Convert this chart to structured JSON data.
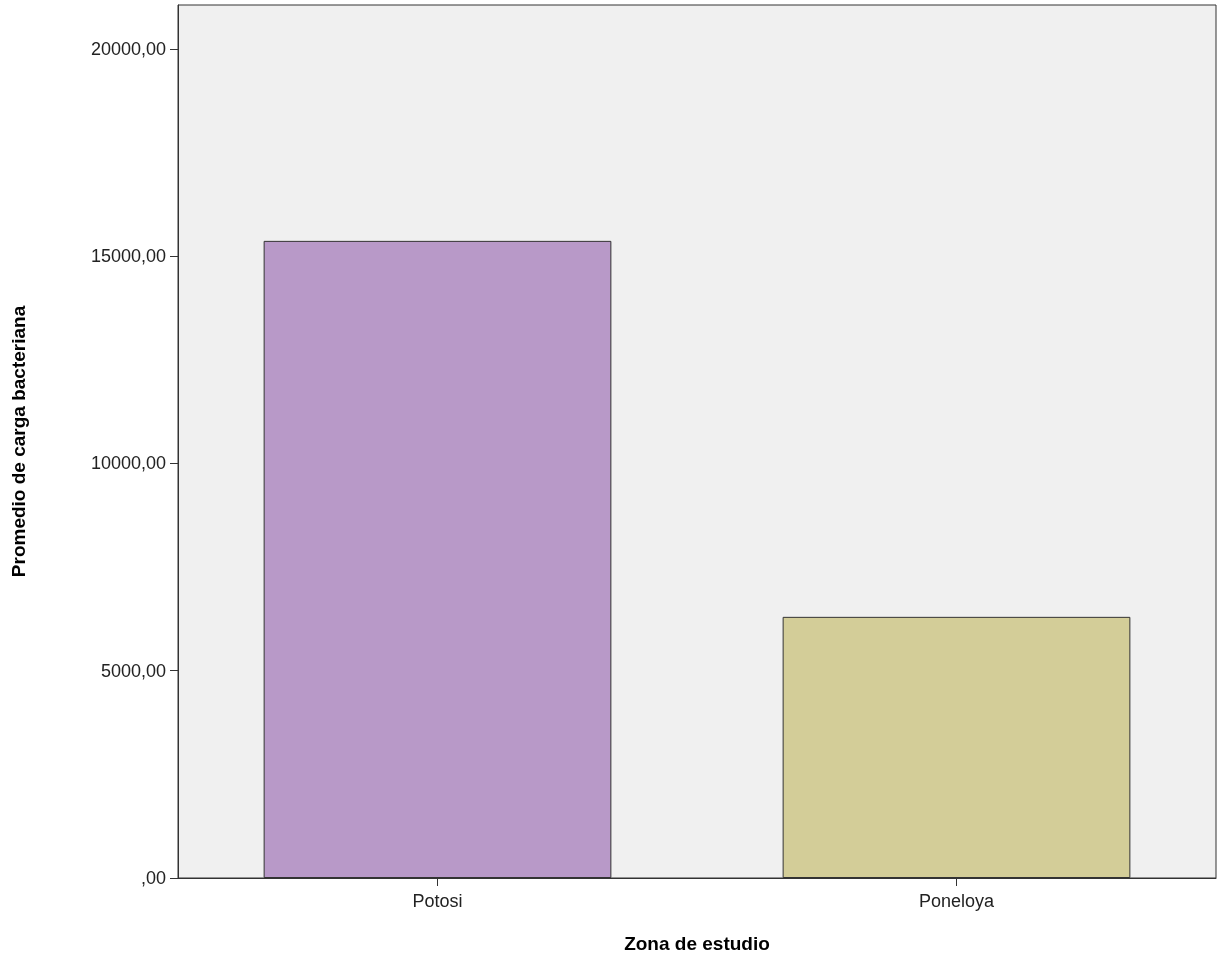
{
  "chart_data": {
    "type": "bar",
    "xlabel": "Zona de estudio",
    "ylabel": "Promedio de carga bacteriana",
    "categories": [
      "Potosi",
      "Poneloya"
    ],
    "values": [
      15370,
      6300
    ],
    "colors": [
      "#b899c8",
      "#d3cd98"
    ],
    "ylim": [
      0,
      21060
    ],
    "yticks": [
      {
        "value": 0,
        "label": ",00"
      },
      {
        "value": 5000,
        "label": "5000,00"
      },
      {
        "value": 10000,
        "label": "10000,00"
      },
      {
        "value": 15000,
        "label": "15000,00"
      },
      {
        "value": 20000,
        "label": "20000,00"
      }
    ],
    "grid": false
  }
}
